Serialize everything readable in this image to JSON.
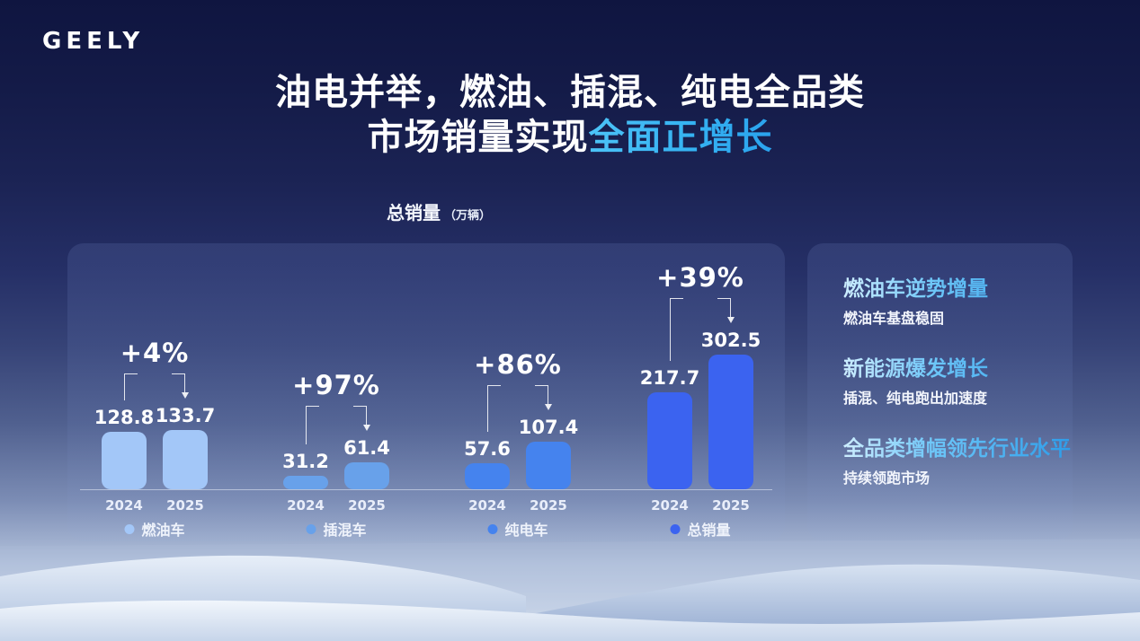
{
  "brand": {
    "logo": "GEELY"
  },
  "title": {
    "line1": "油电并举，燃油、插混、纯电全品类",
    "line2_plain": "市场销量实现",
    "line2_accent": "全面正增长",
    "accent_color": "#35b2f2"
  },
  "chart_data": {
    "type": "bar",
    "title": "总销量",
    "unit": "（万辆）",
    "categories": [
      "2024",
      "2025"
    ],
    "series": [
      {
        "name": "燃油车",
        "values": [
          128.8,
          133.7
        ],
        "growth": "+4%",
        "color": "#a3c7f8"
      },
      {
        "name": "插混车",
        "values": [
          31.2,
          61.4
        ],
        "growth": "+97%",
        "color": "#68a1ea"
      },
      {
        "name": "纯电车",
        "values": [
          57.6,
          107.4
        ],
        "growth": "+86%",
        "color": "#4583ee"
      },
      {
        "name": "总销量",
        "values": [
          217.7,
          302.5
        ],
        "growth": "+39%",
        "color": "#3b63f0"
      }
    ],
    "ylim": [
      0,
      310
    ],
    "grid": false,
    "legend_position": "bottom",
    "value_labels": true
  },
  "highlights": [
    {
      "title": "燃油车逆势增量",
      "desc": "燃油车基盘稳固"
    },
    {
      "title": "新能源爆发增长",
      "desc": "插混、纯电跑出加速度"
    },
    {
      "title": "全品类增幅领先行业水平",
      "desc": "持续领跑市场"
    }
  ]
}
